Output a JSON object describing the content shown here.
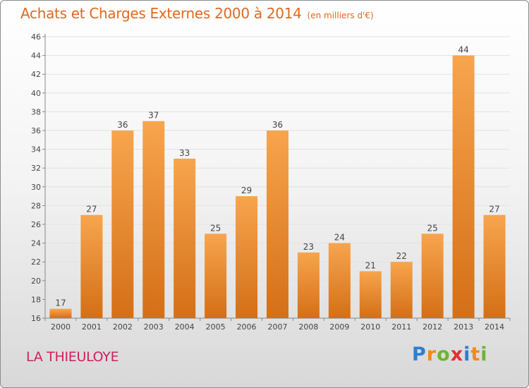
{
  "chart_data": {
    "type": "bar",
    "title": "Achats et Charges Externes 2000 à 2014",
    "subtitle": "(en milliers d'€)",
    "categories": [
      "2000",
      "2001",
      "2002",
      "2003",
      "2004",
      "2005",
      "2006",
      "2007",
      "2008",
      "2009",
      "2010",
      "2011",
      "2012",
      "2013",
      "2014"
    ],
    "values": [
      17,
      27,
      36,
      37,
      33,
      25,
      29,
      36,
      23,
      24,
      21,
      22,
      25,
      44,
      27
    ],
    "ylim": [
      16,
      46
    ],
    "yticks": [
      16,
      18,
      20,
      22,
      24,
      26,
      28,
      30,
      32,
      34,
      36,
      38,
      40,
      42,
      44,
      46
    ],
    "grid": true,
    "legend": "none",
    "bar_color_light": "#f7a54e",
    "bar_color_dark": "#d46f16"
  },
  "commune": "LA THIEULOYE",
  "logo": {
    "letters": [
      "P",
      "r",
      "o",
      "x",
      "i",
      "t",
      "i"
    ],
    "colors": [
      "#2a7fd4",
      "#f08a1c",
      "#6cb62e",
      "#e32f2f",
      "#2a7fd4",
      "#f08a1c",
      "#6cb62e"
    ]
  }
}
